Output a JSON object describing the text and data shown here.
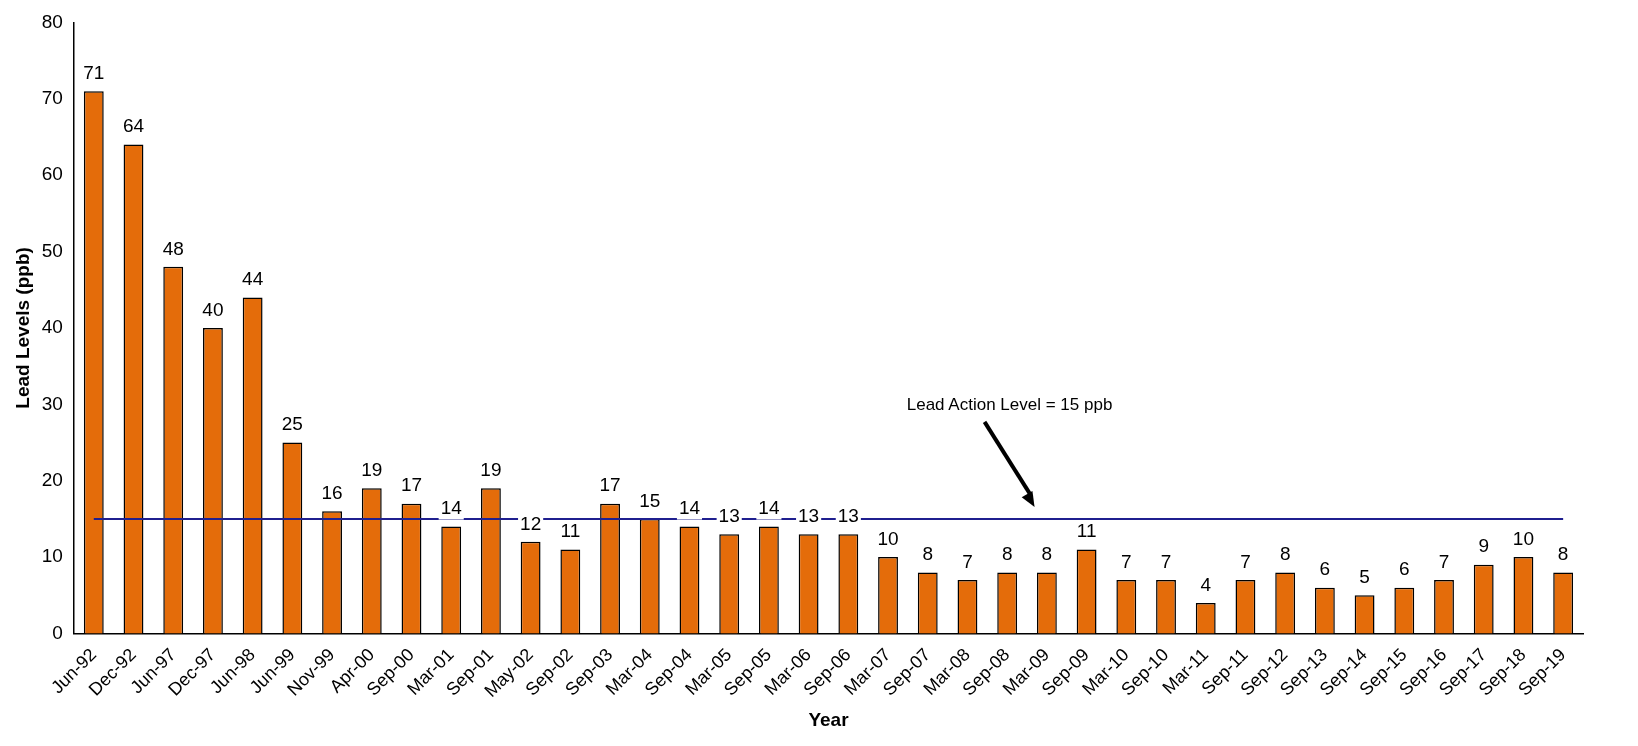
{
  "chart_data": {
    "type": "bar",
    "xlabel": "Year",
    "ylabel": "Lead Levels (ppb)",
    "categories": [
      "Jun-92",
      "Dec-92",
      "Jun-97",
      "Dec-97",
      "Jun-98",
      "Jun-99",
      "Nov-99",
      "Apr-00",
      "Sep-00",
      "Mar-01",
      "Sep-01",
      "May-02",
      "Sep-02",
      "Sep-03",
      "Mar-04",
      "Sep-04",
      "Mar-05",
      "Sep-05",
      "Mar-06",
      "Sep-06",
      "Mar-07",
      "Sep-07",
      "Mar-08",
      "Sep-08",
      "Mar-09",
      "Sep-09",
      "Mar-10",
      "Sep-10",
      "Mar-11",
      "Sep-11",
      "Sep-12",
      "Sep-13",
      "Sep-14",
      "Sep-15",
      "Sep-16",
      "Sep-17",
      "Sep-18",
      "Sep-19"
    ],
    "values": [
      71,
      64,
      48,
      40,
      44,
      25,
      16,
      19,
      17,
      14,
      19,
      12,
      11,
      17,
      15,
      14,
      13,
      14,
      13,
      13,
      10,
      8,
      7,
      8,
      8,
      11,
      7,
      7,
      4,
      7,
      8,
      6,
      5,
      6,
      7,
      9,
      10,
      8
    ],
    "color": "#e46c0a",
    "ylim": [
      0,
      80
    ],
    "yticks": [
      0,
      10,
      20,
      30,
      40,
      50,
      60,
      70,
      80
    ],
    "grid": false,
    "legend": false,
    "data_labels": true,
    "annotations": [
      "Lead Action Level = 15 ppb"
    ],
    "ref_lines": [
      {
        "axis": "y",
        "value": 15,
        "color": "#1f1f8f"
      }
    ]
  }
}
